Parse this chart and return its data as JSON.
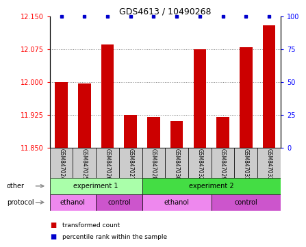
{
  "title": "GDS4613 / 10490268",
  "samples": [
    "GSM847024",
    "GSM847025",
    "GSM847026",
    "GSM847027",
    "GSM847028",
    "GSM847030",
    "GSM847032",
    "GSM847029",
    "GSM847031",
    "GSM847033"
  ],
  "bar_values": [
    12.0,
    11.997,
    12.085,
    11.925,
    11.92,
    11.91,
    12.075,
    11.92,
    12.08,
    12.13
  ],
  "percentile_values": [
    100,
    100,
    100,
    100,
    100,
    100,
    100,
    100,
    100,
    100
  ],
  "ylim_left": [
    11.85,
    12.15
  ],
  "ylim_right": [
    0,
    100
  ],
  "yticks_left": [
    11.85,
    11.925,
    12.0,
    12.075,
    12.15
  ],
  "yticks_right": [
    0,
    25,
    50,
    75,
    100
  ],
  "bar_color": "#cc0000",
  "dot_color": "#0000cc",
  "bar_bottom": 11.85,
  "experiment1_samples": [
    0,
    1,
    2,
    3
  ],
  "experiment2_samples": [
    4,
    5,
    6,
    7,
    8,
    9
  ],
  "ethanol1_samples": [
    0,
    1
  ],
  "control1_samples": [
    2,
    3
  ],
  "ethanol2_samples": [
    4,
    5,
    6
  ],
  "control2_samples": [
    7,
    8,
    9
  ],
  "exp1_color": "#aaffaa",
  "exp2_color": "#44dd44",
  "ethanol_color": "#ee88ee",
  "control_color": "#cc55cc",
  "sample_bg_color": "#cccccc",
  "legend_red_label": "transformed count",
  "legend_blue_label": "percentile rank within the sample",
  "other_label": "other",
  "protocol_label": "protocol"
}
